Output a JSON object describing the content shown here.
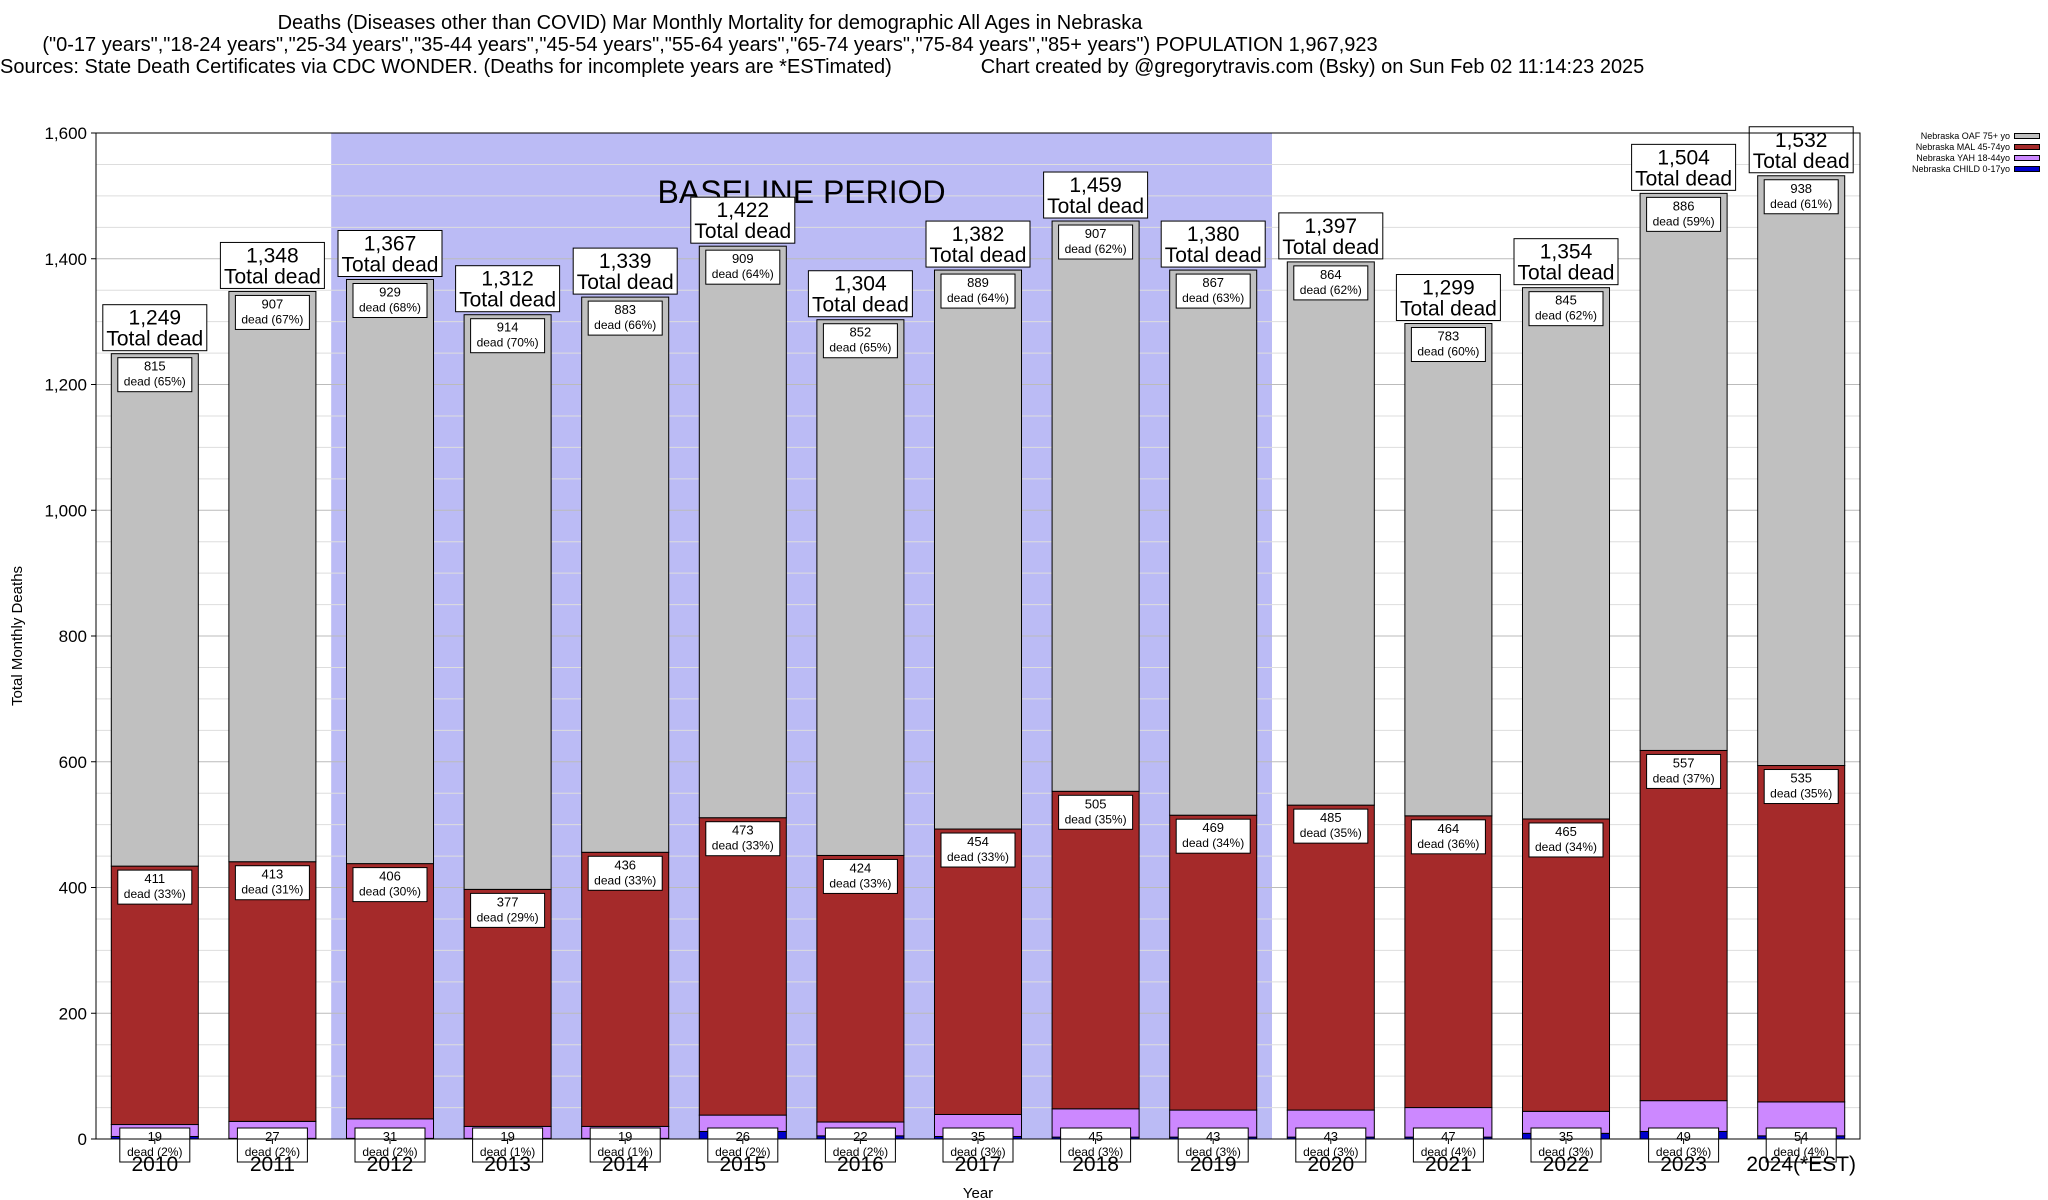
{
  "header": {
    "title": "Deaths (Diseases other than COVID) Mar Monthly Mortality for demographic All Ages in Nebraska",
    "subtitle": "(\"0-17 years\",\"18-24 years\",\"25-34 years\",\"35-44 years\",\"45-54 years\",\"55-64 years\",\"65-74 years\",\"75-84 years\",\"85+ years\") POPULATION 1,967,923",
    "sources": "Sources: State Death Certificates via CDC WONDER. (Deaths for incomplete years are *ESTimated)",
    "credit": "Chart created by @gregorytravis.com (Bsky) on Sun Feb 02 11:14:23 2025"
  },
  "legend": [
    {
      "label": "Nebraska OAF 75+ yo",
      "color": "#c0c0c0"
    },
    {
      "label": "Nebraska MAL 45-74yo",
      "color": "#a52a2a"
    },
    {
      "label": "Nebraska YAH 18-44yo",
      "color": "#cc88ff"
    },
    {
      "label": "Nebraska CHILD 0-17yo",
      "color": "#0000cc"
    }
  ],
  "chart_data": {
    "type": "bar",
    "stacked": true,
    "xlabel": "Year",
    "ylabel": "Total Monthly Deaths",
    "ylim": [
      0,
      1600
    ],
    "yticks": [
      "0",
      "200",
      "400",
      "600",
      "800",
      "1,000",
      "1,200",
      "1,400",
      "1,600"
    ],
    "grid": true,
    "legend_position": "top-right",
    "categories": [
      "2010",
      "2011",
      "2012",
      "2013",
      "2014",
      "2015",
      "2016",
      "2017",
      "2018",
      "2019",
      "2020",
      "2021",
      "2022",
      "2023",
      "2024(*EST)"
    ],
    "baseline_period": {
      "label": "BASELINE PERIOD",
      "from": "2012",
      "to": "2019",
      "color": "#bbbbf5"
    },
    "total_label_suffix": "Total dead",
    "totals": [
      "1,249",
      "1,348",
      "1,367",
      "1,312",
      "1,339",
      "1,422",
      "1,304",
      "1,382",
      "1,459",
      "1,380",
      "1,397",
      "1,299",
      "1,354",
      "1,504",
      "1,532"
    ],
    "series": [
      {
        "name": "Nebraska CHILD 0-17yo",
        "color": "#0000cc",
        "values": [
          4,
          1,
          1,
          1,
          1,
          12,
          5,
          4,
          3,
          3,
          3,
          3,
          9,
          12,
          5
        ],
        "labels": [
          "",
          "",
          "",
          "",
          "",
          "",
          "",
          "",
          "",
          "",
          "",
          "",
          "",
          "",
          ""
        ]
      },
      {
        "name": "Nebraska YAH 18-44yo",
        "color": "#cc88ff",
        "values": [
          19,
          27,
          31,
          19,
          19,
          26,
          22,
          35,
          45,
          43,
          43,
          47,
          35,
          49,
          54
        ],
        "labels": [
          "19",
          "27",
          "31",
          "19",
          "19",
          "26",
          "22",
          "35",
          "45",
          "43",
          "43",
          "47",
          "35",
          "49",
          "54"
        ],
        "pcts": [
          "dead (2%)",
          "dead (2%)",
          "dead (2%)",
          "dead (1%)",
          "dead (1%)",
          "dead (2%)",
          "dead (2%)",
          "dead (3%)",
          "dead (3%)",
          "dead (3%)",
          "dead (3%)",
          "dead (4%)",
          "dead (3%)",
          "dead (3%)",
          "dead (4%)"
        ]
      },
      {
        "name": "Nebraska MAL 45-74yo",
        "color": "#a52a2a",
        "values": [
          411,
          413,
          406,
          377,
          436,
          473,
          424,
          454,
          505,
          469,
          485,
          464,
          465,
          557,
          535
        ],
        "labels": [
          "411",
          "413",
          "406",
          "377",
          "436",
          "473",
          "424",
          "454",
          "505",
          "469",
          "485",
          "464",
          "465",
          "557",
          "535"
        ],
        "pcts": [
          "dead (33%)",
          "dead (31%)",
          "dead (30%)",
          "dead (29%)",
          "dead (33%)",
          "dead (33%)",
          "dead (33%)",
          "dead (33%)",
          "dead (35%)",
          "dead (34%)",
          "dead (35%)",
          "dead (36%)",
          "dead (34%)",
          "dead (37%)",
          "dead (35%)"
        ]
      },
      {
        "name": "Nebraska OAF 75+ yo",
        "color": "#c0c0c0",
        "values": [
          815,
          907,
          929,
          914,
          883,
          909,
          852,
          889,
          907,
          867,
          864,
          783,
          845,
          886,
          938
        ],
        "labels": [
          "815",
          "907",
          "929",
          "914",
          "883",
          "909",
          "852",
          "889",
          "907",
          "867",
          "864",
          "783",
          "845",
          "886",
          "938"
        ],
        "pcts": [
          "dead (65%)",
          "dead (67%)",
          "dead (68%)",
          "dead (70%)",
          "dead (66%)",
          "dead (64%)",
          "dead (65%)",
          "dead (64%)",
          "dead (62%)",
          "dead (63%)",
          "dead (62%)",
          "dead (60%)",
          "dead (62%)",
          "dead (59%)",
          "dead (61%)"
        ]
      }
    ]
  }
}
